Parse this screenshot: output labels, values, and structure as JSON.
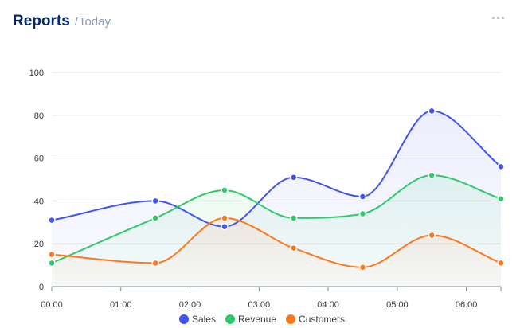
{
  "header": {
    "title": "Reports",
    "subtitle_prefix": "/",
    "subtitle": "Today",
    "menu_icon": "more-horizontal-icon"
  },
  "colors": {
    "title": "#012970",
    "subtitle": "#899bbd",
    "grid": "#e0e0e0"
  },
  "chart_data": {
    "type": "area",
    "categories": [
      "00:00",
      "01:00",
      "02:00",
      "03:00",
      "04:00",
      "05:00",
      "06:00"
    ],
    "x_hours": [
      0,
      1.5,
      2.5,
      3.5,
      4.5,
      5.5,
      6.5
    ],
    "x_range_hours": [
      0,
      6.5
    ],
    "ylim": [
      0,
      100
    ],
    "yticks": [
      0,
      20,
      40,
      60,
      80,
      100
    ],
    "grid": "horizontal",
    "legend_position": "bottom",
    "series": [
      {
        "name": "Sales",
        "color": "#4154f1",
        "values": [
          31,
          40,
          28,
          51,
          42,
          82,
          56
        ]
      },
      {
        "name": "Revenue",
        "color": "#2eca6a",
        "values": [
          11,
          32,
          45,
          32,
          34,
          52,
          41
        ]
      },
      {
        "name": "Customers",
        "color": "#ff771d",
        "values": [
          15,
          11,
          32,
          18,
          9,
          24,
          11
        ]
      }
    ]
  }
}
